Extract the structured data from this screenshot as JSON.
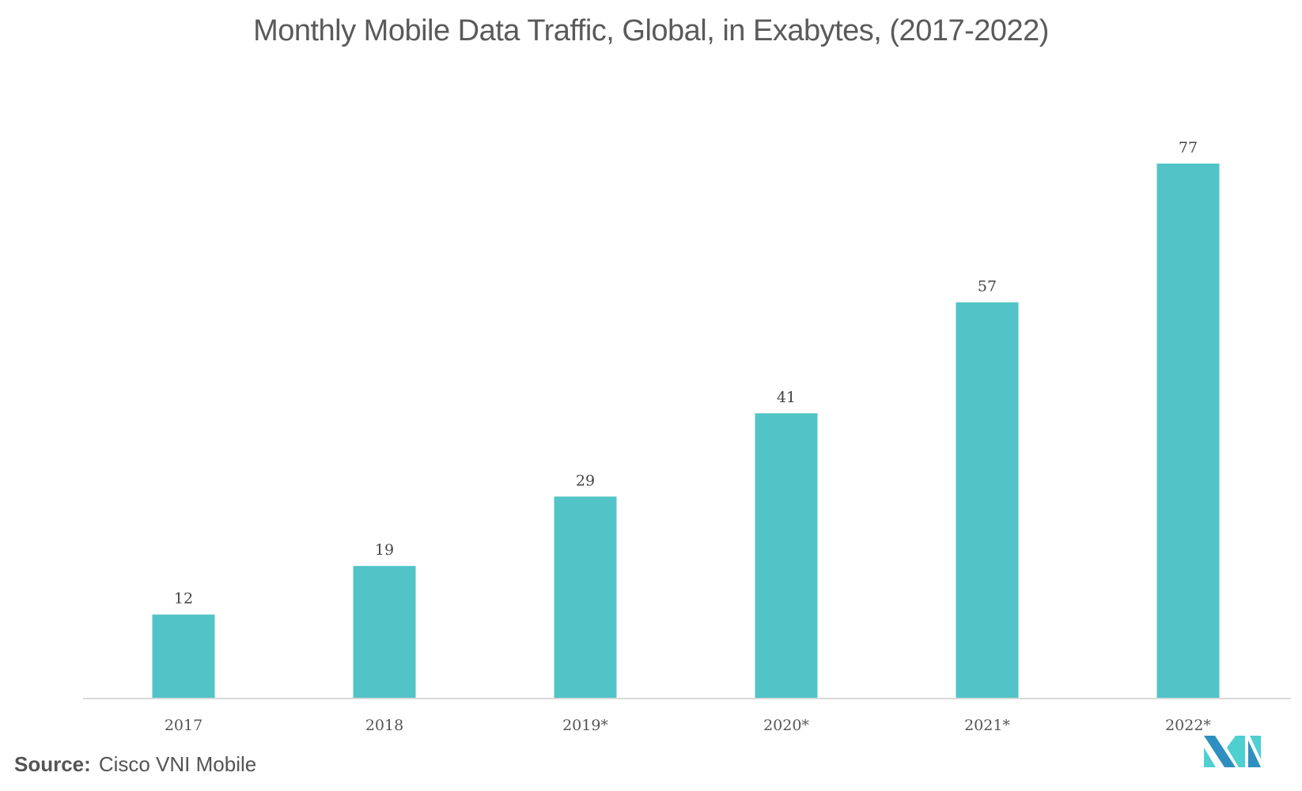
{
  "chart_data": {
    "type": "bar",
    "title": "Monthly Mobile Data Traffic, Global, in Exabytes, (2017-2022)",
    "categories": [
      "2017",
      "2018",
      "2019*",
      "2020*",
      "2021*",
      "2022*"
    ],
    "values": [
      12,
      19,
      29,
      41,
      57,
      77
    ],
    "xlabel": "",
    "ylabel": "",
    "ylim": [
      0,
      77
    ],
    "grid": false,
    "legend": "none",
    "data_labels": true,
    "bar_color": "#52c4c7"
  },
  "source": {
    "label": "Source:",
    "text": "Cisco VNI Mobile"
  },
  "colors": {
    "bar": "#52c4c7",
    "axis": "#d9d9d9",
    "logo_dark": "#2e8fc0",
    "logo_light": "#4ecfd0"
  },
  "logo": {
    "icon": "mordor-intelligence-logo"
  }
}
